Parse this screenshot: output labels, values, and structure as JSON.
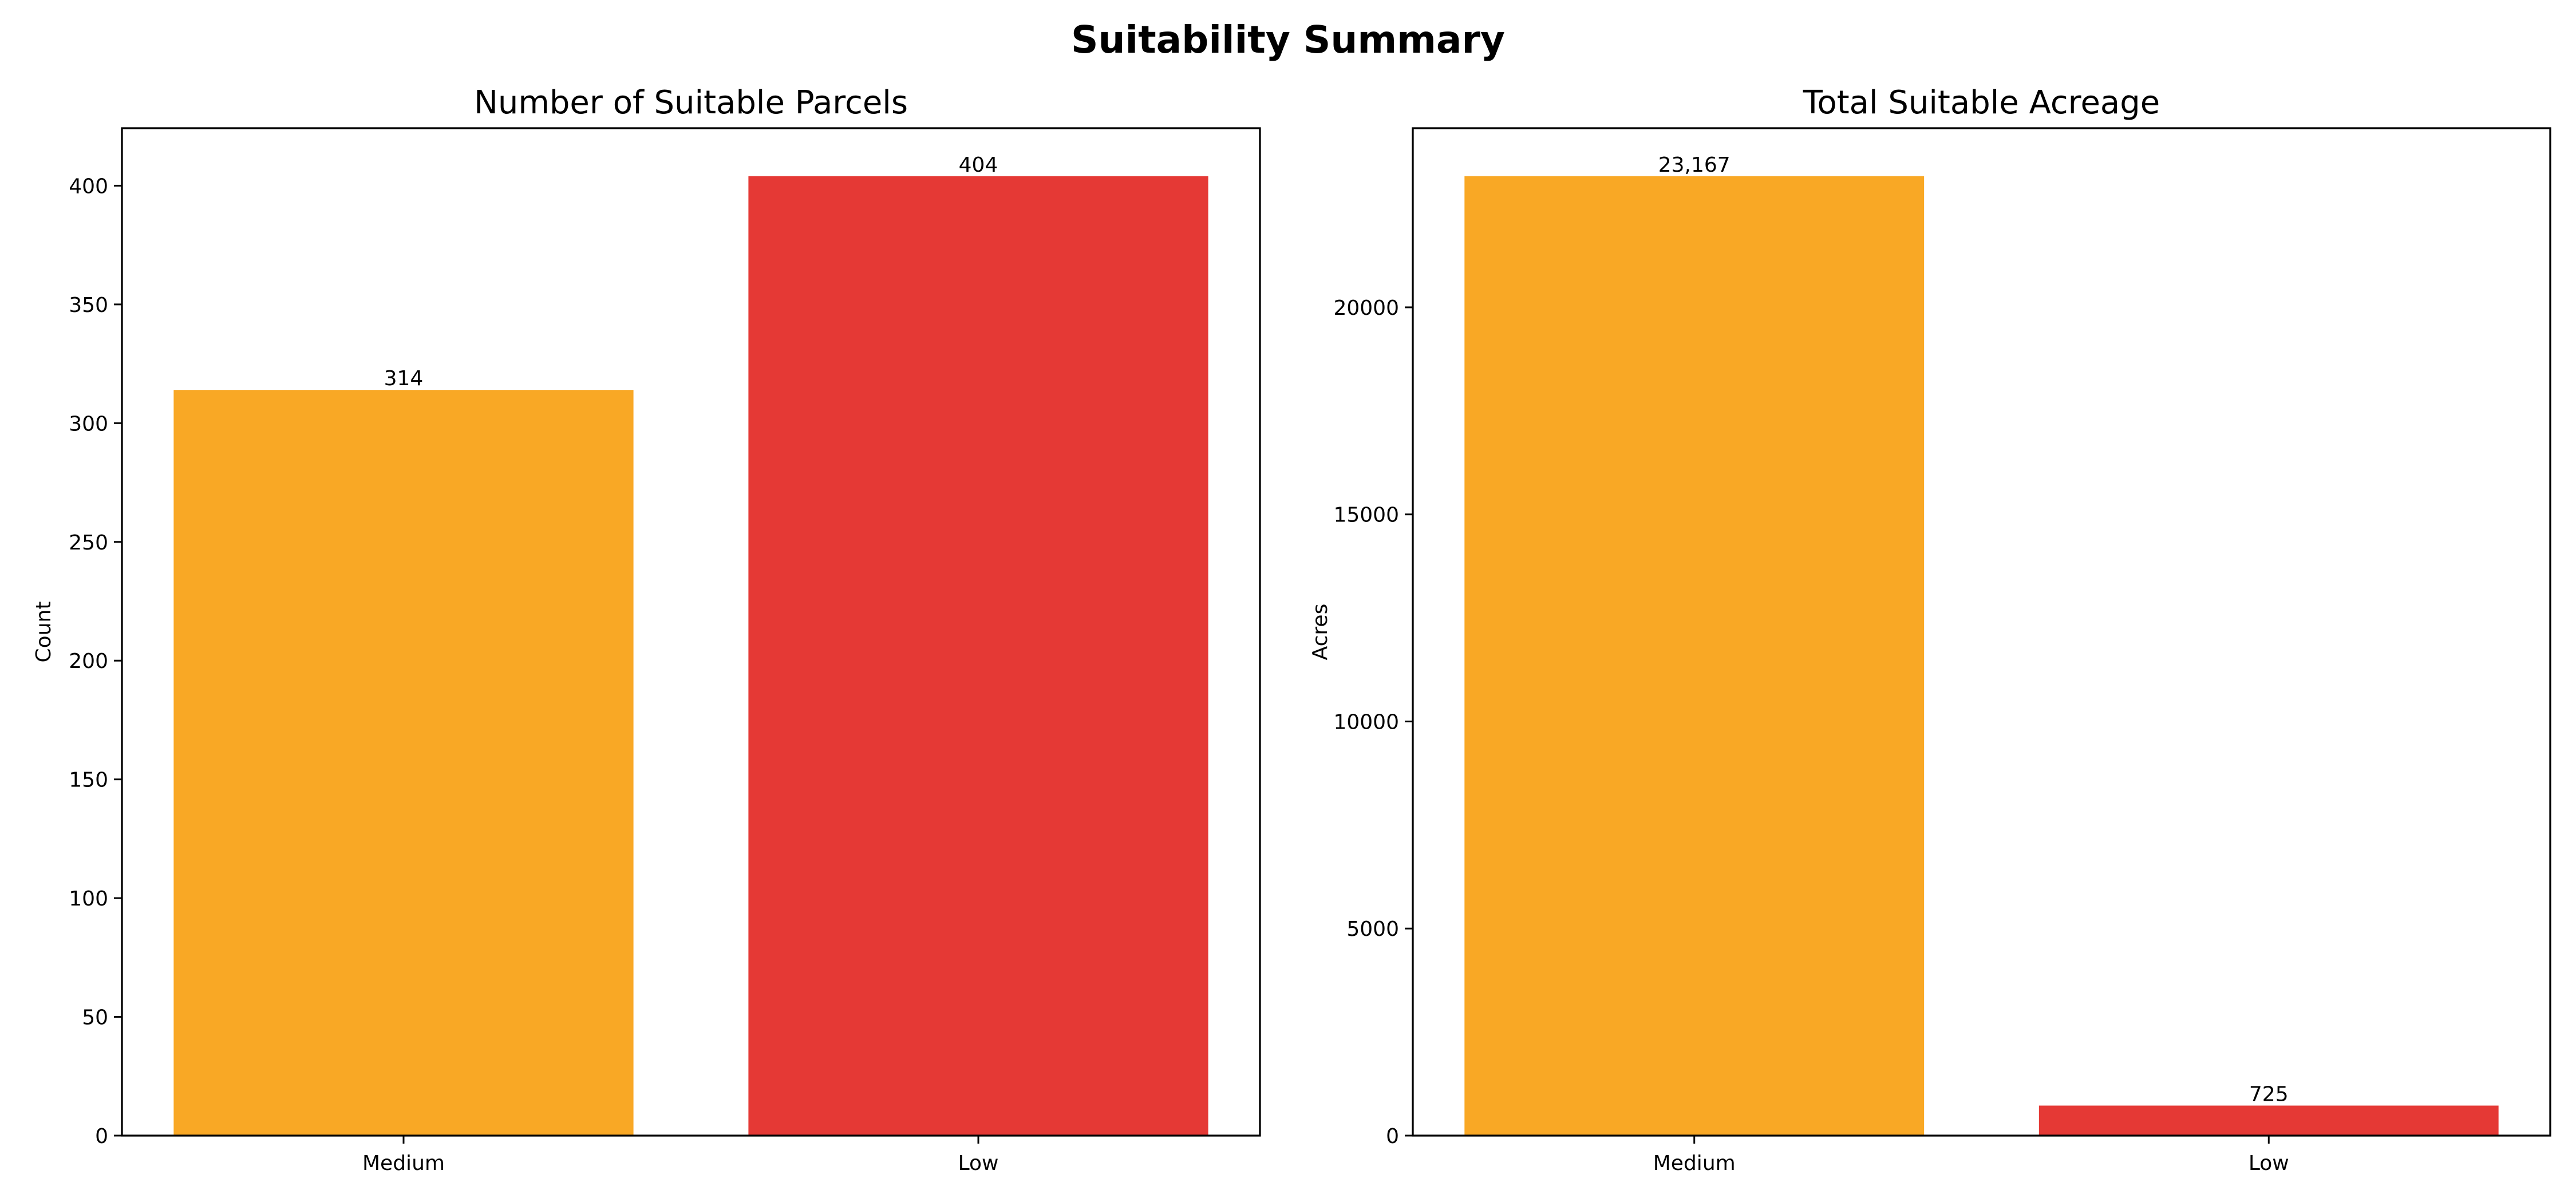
{
  "title": "Suitability Summary",
  "chart_data": [
    {
      "type": "bar",
      "title": "Number of Suitable Parcels",
      "xlabel": "",
      "ylabel": "Count",
      "categories": [
        "Medium",
        "Low"
      ],
      "values": [
        314,
        404
      ],
      "data_labels": [
        "314",
        "404"
      ],
      "colors": [
        "#F9A825",
        "#E53935"
      ],
      "ylim": [
        0,
        424.2
      ],
      "yticks": [
        0,
        50,
        100,
        150,
        200,
        250,
        300,
        350,
        400
      ],
      "grid": false
    },
    {
      "type": "bar",
      "title": "Total Suitable Acreage",
      "xlabel": "",
      "ylabel": "Acres",
      "categories": [
        "Medium",
        "Low"
      ],
      "values": [
        23167,
        725
      ],
      "data_labels": [
        "23,167",
        "725"
      ],
      "colors": [
        "#F9A825",
        "#E53935"
      ],
      "ylim": [
        0,
        24325
      ],
      "yticks": [
        0,
        5000,
        10000,
        15000,
        20000
      ],
      "grid": false
    }
  ]
}
